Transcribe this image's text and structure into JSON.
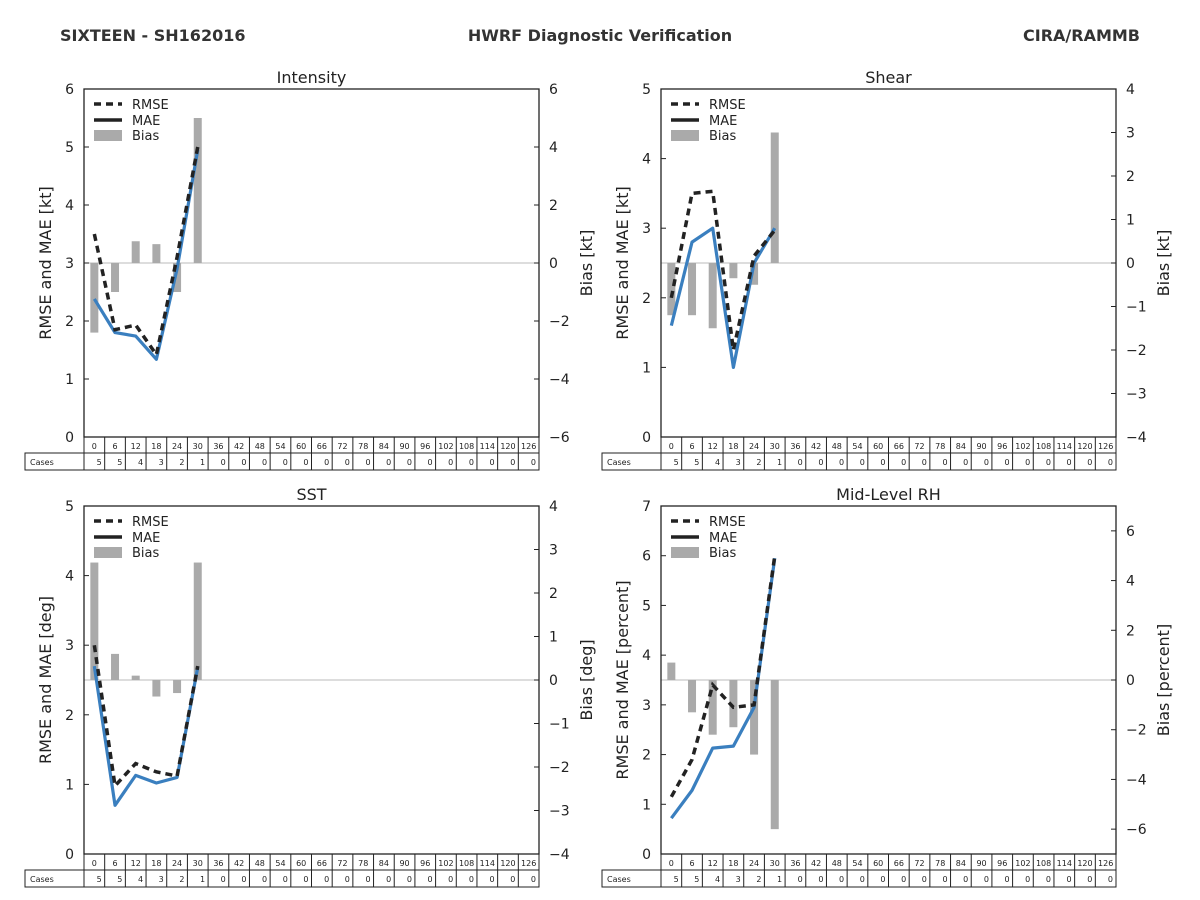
{
  "header": {
    "storm": "SIXTEEN - SH162016",
    "title": "HWRF Diagnostic Verification",
    "org": "CIRA/RAMMB"
  },
  "legend_labels": [
    "RMSE",
    "MAE",
    "Bias"
  ],
  "cases_label": "Cases",
  "colors": {
    "rmse": "#222222",
    "mae": "#3a7fbf",
    "bias": "#aaaaaa",
    "zero_line": "#bbbbbb"
  },
  "chart_data": [
    {
      "type": "line",
      "title": "Intensity",
      "ylabel": "RMSE and MAE [kt]",
      "y2label": "Bias [kt]",
      "ylim": [
        0,
        6
      ],
      "yticks": [
        0,
        1,
        2,
        3,
        4,
        5,
        6
      ],
      "y2lim": [
        -6,
        6
      ],
      "y2ticks": [
        -6,
        -4,
        -2,
        0,
        2,
        4,
        6
      ],
      "x": [
        0,
        6,
        12,
        18,
        24,
        30
      ],
      "rmse": [
        3.5,
        1.85,
        1.93,
        1.42,
        3.1,
        5.0
      ],
      "mae": [
        2.38,
        1.8,
        1.74,
        1.34,
        2.9,
        4.95
      ],
      "bias_x": [
        0,
        6,
        12,
        18,
        24,
        30
      ],
      "bias": [
        -2.4,
        -1.0,
        0.75,
        0.65,
        -1.0,
        5.0
      ],
      "leads": [
        0,
        6,
        12,
        18,
        24,
        30,
        36,
        42,
        48,
        54,
        60,
        66,
        72,
        78,
        84,
        90,
        96,
        102,
        108,
        114,
        120,
        126
      ],
      "cases": [
        5,
        5,
        4,
        3,
        2,
        1,
        0,
        0,
        0,
        0,
        0,
        0,
        0,
        0,
        0,
        0,
        0,
        0,
        0,
        0,
        0,
        0
      ]
    },
    {
      "type": "line",
      "title": "Shear",
      "ylabel": "RMSE and MAE [kt]",
      "y2label": "Bias [kt]",
      "ylim": [
        0,
        5
      ],
      "yticks": [
        0,
        1,
        2,
        3,
        4,
        5
      ],
      "y2lim": [
        -4,
        4
      ],
      "y2ticks": [
        -4,
        -3,
        -2,
        -1,
        0,
        1,
        2,
        3,
        4
      ],
      "x": [
        0,
        6,
        12,
        18,
        24,
        30
      ],
      "rmse": [
        2.0,
        3.5,
        3.53,
        1.25,
        2.6,
        2.97
      ],
      "mae": [
        1.6,
        2.8,
        3.0,
        1.0,
        2.5,
        3.0
      ],
      "bias_x": [
        0,
        6,
        12,
        18,
        24,
        30
      ],
      "bias": [
        -1.2,
        -1.2,
        -1.5,
        -0.35,
        -0.5,
        3.0
      ],
      "leads": [
        0,
        6,
        12,
        18,
        24,
        30,
        36,
        42,
        48,
        54,
        60,
        66,
        72,
        78,
        84,
        90,
        96,
        102,
        108,
        114,
        120,
        126
      ],
      "cases": [
        5,
        5,
        4,
        3,
        2,
        1,
        0,
        0,
        0,
        0,
        0,
        0,
        0,
        0,
        0,
        0,
        0,
        0,
        0,
        0,
        0,
        0
      ]
    },
    {
      "type": "line",
      "title": "SST",
      "ylabel": "RMSE and MAE [deg]",
      "y2label": "Bias [deg]",
      "ylim": [
        0,
        5
      ],
      "yticks": [
        0,
        1,
        2,
        3,
        4,
        5
      ],
      "y2lim": [
        -4,
        4
      ],
      "y2ticks": [
        -4,
        -3,
        -2,
        -1,
        0,
        1,
        2,
        3,
        4
      ],
      "x": [
        0,
        6,
        12,
        18,
        24,
        30
      ],
      "rmse": [
        3.0,
        0.98,
        1.3,
        1.18,
        1.12,
        2.7
      ],
      "mae": [
        2.7,
        0.7,
        1.13,
        1.02,
        1.1,
        2.68
      ],
      "bias_x": [
        0,
        6,
        12,
        18,
        24,
        30
      ],
      "bias": [
        2.7,
        0.6,
        0.1,
        -0.38,
        -0.3,
        2.7
      ],
      "leads": [
        0,
        6,
        12,
        18,
        24,
        30,
        36,
        42,
        48,
        54,
        60,
        66,
        72,
        78,
        84,
        90,
        96,
        102,
        108,
        114,
        120,
        126
      ],
      "cases": [
        5,
        5,
        4,
        3,
        2,
        1,
        0,
        0,
        0,
        0,
        0,
        0,
        0,
        0,
        0,
        0,
        0,
        0,
        0,
        0,
        0,
        0
      ]
    },
    {
      "type": "line",
      "title": "Mid-Level RH",
      "ylabel": "RMSE and MAE [percent]",
      "y2label": "Bias [percent]",
      "ylim": [
        0,
        7
      ],
      "yticks": [
        0,
        1,
        2,
        3,
        4,
        5,
        6,
        7
      ],
      "y2lim": [
        -7,
        7
      ],
      "y2ticks": [
        -6,
        -4,
        -2,
        0,
        2,
        4,
        6
      ],
      "x": [
        0,
        6,
        12,
        18,
        24,
        30
      ],
      "rmse": [
        1.15,
        1.9,
        3.4,
        2.95,
        3.0,
        6.0
      ],
      "mae": [
        0.72,
        1.28,
        2.13,
        2.17,
        2.95,
        5.95
      ],
      "bias_x": [
        0,
        6,
        12,
        18,
        24,
        30
      ],
      "bias": [
        0.7,
        -1.3,
        -2.2,
        -1.9,
        -3.0,
        -6.0
      ],
      "leads": [
        0,
        6,
        12,
        18,
        24,
        30,
        36,
        42,
        48,
        54,
        60,
        66,
        72,
        78,
        84,
        90,
        96,
        102,
        108,
        114,
        120,
        126
      ],
      "cases": [
        5,
        5,
        4,
        3,
        2,
        1,
        0,
        0,
        0,
        0,
        0,
        0,
        0,
        0,
        0,
        0,
        0,
        0,
        0,
        0,
        0,
        0
      ]
    }
  ]
}
